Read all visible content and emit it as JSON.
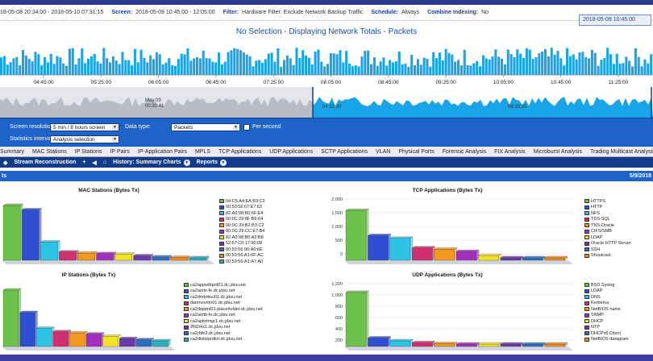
{
  "status": {
    "range": "18-05-08 20:34:00 - 2018-05-10 07:31:15",
    "screen_label": "Screen:",
    "screen_value": "2018-05-09 10:45:00 - 12:05:00",
    "filter_label": "Filter:",
    "filter_value": "Hardware Filter: Exclude Network Backup Traffic",
    "schedule_label": "Schedule:",
    "schedule_value": "Always",
    "indexing_label": "Combine Indexing:",
    "indexing_value": "No",
    "datestamp": "2018-05-09 10:45:00"
  },
  "top_chart": {
    "title": "No Selection - Displaying Network Totals - Packets",
    "time_labels": [
      "04:45:00",
      "05:25:00",
      "06:05:00",
      "06:45:00",
      "07:25:00",
      "08:05:00",
      "08:45:00",
      "09:25:00",
      "10:05:00",
      "10:45:00",
      "11:25:00"
    ],
    "series_color": "#19a3e8",
    "overview_labels_left": [
      "May 09",
      "00:30:41"
    ],
    "overview_labels_right": [
      "04:22:30",
      "09:10:15"
    ]
  },
  "toolbar": {
    "resolution_label": "Screen resolution",
    "resolution_value": "5 min / 8 hours screen",
    "interval_label": "Statistics interval",
    "interval_value": "Analysis selection",
    "datatype_label": "Data type:",
    "datatype_value": "Packets",
    "per_second_label": "Per second"
  },
  "tabs": [
    "Summary",
    "MAC Stations",
    "IP Stations",
    "IP Pairs",
    "IP-Application Pairs",
    "MPLS",
    "TCP Applications",
    "UDP Applications",
    "SCTP Applications",
    "VLAN",
    "Physical Ports",
    "Forensic Analysis",
    "FIX Analysis",
    "Microburst Analysis",
    "Trading Multicast Analysis",
    "IPTV Analysis"
  ],
  "section": {
    "stream_label": "Stream Reconstruction",
    "history_label": "History: Summary Charts",
    "reports_label": "Reports",
    "header_left": "ts",
    "header_right": "5/9/2018"
  },
  "chart_data": [
    {
      "type": "bar",
      "title": "MAC Stations (Bytes Tx)",
      "categories": [
        "04:C5:A4:EA:B3:C3",
        "00:50:56:07:E7:63",
        "82:A0:98:B0:6F:E4",
        "00:0C:29:8F:B6:64",
        "00:0C:29:B2:B3:C2",
        "00:0C:29:CC:E7:B4",
        "82:A0:98:B0:A2:B8",
        "52:57:C0:17:90:08",
        "00:50:56:96:A6:6E",
        "00:50:56:A1:6F:AC",
        "00:50:56:A1:A7:A0"
      ],
      "values": [
        100,
        92,
        33,
        15,
        13,
        12,
        11,
        8,
        6,
        5,
        4
      ],
      "colors": [
        "#6cc24a",
        "#2f4fd0",
        "#2ec4e6",
        "#d0306f",
        "#f39a1e",
        "#a32fc0",
        "#f3e12a",
        "#6a3aa8",
        "#2c6fc0",
        "#f08a20",
        "#2ab0c0"
      ]
    },
    {
      "type": "bar",
      "title": "TCP Applications (Bytes Tx)",
      "categories": [
        "HTTPS",
        "HTTP",
        "NFS",
        "TDS-SQL",
        "TNS-Oracle",
        "CIFS/SMB",
        "LDAP",
        "Oracle HTTP Server",
        "SSH",
        "Shoutcast"
      ],
      "values": [
        1820,
        900,
        800,
        450,
        400,
        320,
        170,
        80,
        50,
        40
      ],
      "ylim": [
        0,
        2000
      ],
      "yticks": [
        "2,000",
        "1,500",
        "1,000",
        "500",
        "0"
      ],
      "colors": [
        "#6cc24a",
        "#2f4fd0",
        "#2ec4e6",
        "#d0306f",
        "#f39a1e",
        "#a32fc0",
        "#f3e12a",
        "#6a3aa8",
        "#2c6fc0",
        "#f08a20"
      ]
    },
    {
      "type": "bar",
      "title": "IP Stations (Bytes Tx)",
      "categories": [
        "ca2appwtbprd01.dc.jdsu.net",
        "ca2asrtx-fe.dc.jdsu.net",
        "ca2dmbrtisu01.dc.jdsu.net",
        "danmovmn01.dc.jdsu.net",
        "ca2dsppnt01-placeholder.dc.jdsu.net",
        "ca2asrtb-fe.dc.jdsu.net",
        "ca2aplistmgr1.dc.jdsu.net",
        "2fd2mx1.dc.jdsu.net",
        "ca2rbfe2.dc.jdsu.net",
        "ca2dtsbsprdkrr.dc.jdsu.net"
      ],
      "values": [
        100,
        60,
        32,
        26,
        24,
        22,
        18,
        14,
        12,
        10
      ],
      "colors": [
        "#6cc24a",
        "#2f4fd0",
        "#2ec4e6",
        "#d0306f",
        "#f39a1e",
        "#a32fc0",
        "#f3e12a",
        "#6a3aa8",
        "#2c6fc0",
        "#2ab0c0"
      ]
    },
    {
      "type": "bar",
      "title": "UDP Applications (Bytes Tx)",
      "categories": [
        "BSD Syslog",
        "LDAP",
        "DNS",
        "Kerberos",
        "NetBIOS name",
        "SNMP",
        "DHCP",
        "NTP",
        "DHCPv6 Client",
        "NetBIOS datagram"
      ],
      "values": [
        1150,
        180,
        120,
        80,
        60,
        40,
        30,
        20,
        15,
        10
      ],
      "ylim": [
        0,
        1200
      ],
      "yticks": [
        "1,200",
        "1,000",
        "800",
        "600",
        "400",
        "200"
      ],
      "colors": [
        "#6cc24a",
        "#2f4fd0",
        "#2ec4e6",
        "#d0306f",
        "#f39a1e",
        "#a32fc0",
        "#f3e12a",
        "#6a3aa8",
        "#2c6fc0",
        "#f08a20"
      ]
    }
  ]
}
